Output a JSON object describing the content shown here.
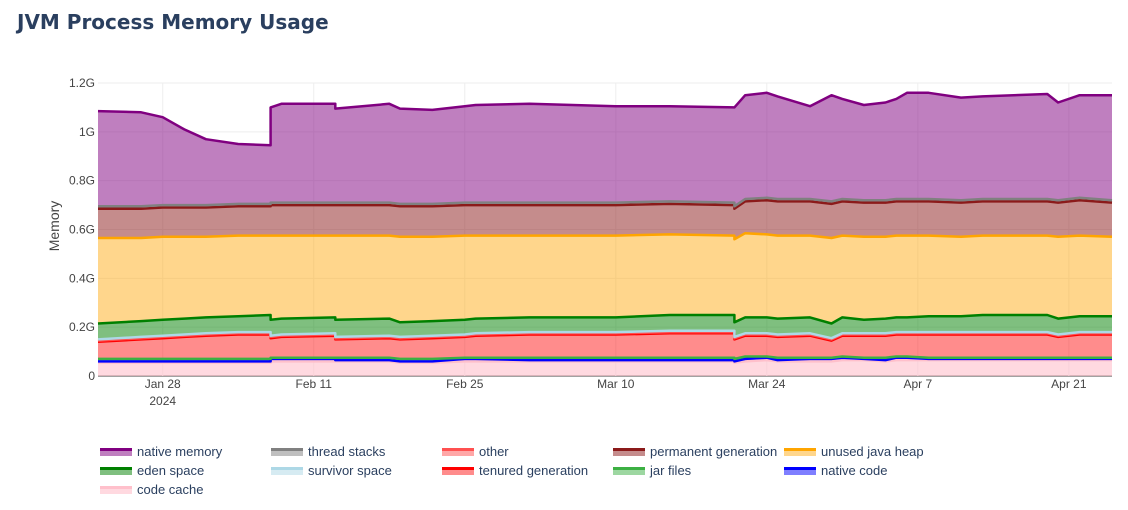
{
  "page": {
    "title": "JVM Process Memory Usage"
  },
  "chart_data": {
    "type": "area",
    "stacked": true,
    "title": "JVM Process Memory Usage",
    "xlabel": "",
    "ylabel": "Memory",
    "ylim": [
      0,
      1.2
    ],
    "yunit": "G",
    "ytick_labels": [
      "0",
      "0.2G",
      "0.4G",
      "0.6G",
      "0.8G",
      "1G",
      "1.2G"
    ],
    "ytick_values": [
      0,
      0.2,
      0.4,
      0.6,
      0.8,
      1.0,
      1.2
    ],
    "xlim": [
      "2024-01-22",
      "2024-04-25"
    ],
    "xtick_labels": [
      "Jan 28",
      "Feb 11",
      "Feb 25",
      "Mar 10",
      "Mar 24",
      "Apr 7",
      "Apr 21"
    ],
    "xtick_dates": [
      "2024-01-28",
      "2024-02-11",
      "2024-02-25",
      "2024-03-10",
      "2024-03-24",
      "2024-04-07",
      "2024-04-21"
    ],
    "xtick_year_label": "2024",
    "grid": true,
    "legend_position": "bottom",
    "x": [
      "2024-01-22",
      "2024-01-26",
      "2024-01-28",
      "2024-01-30",
      "2024-02-01",
      "2024-02-04",
      "2024-02-07",
      "2024-02-07",
      "2024-02-08",
      "2024-02-13",
      "2024-02-13",
      "2024-02-18",
      "2024-02-19",
      "2024-02-22",
      "2024-02-25",
      "2024-02-26",
      "2024-03-02",
      "2024-03-10",
      "2024-03-15",
      "2024-03-21",
      "2024-03-21",
      "2024-03-22",
      "2024-03-24",
      "2024-03-25",
      "2024-03-28",
      "2024-03-30",
      "2024-03-31",
      "2024-04-02",
      "2024-04-04",
      "2024-04-05",
      "2024-04-06",
      "2024-04-08",
      "2024-04-11",
      "2024-04-13",
      "2024-04-19",
      "2024-04-20",
      "2024-04-22",
      "2024-04-25"
    ],
    "series": [
      {
        "name": "code cache",
        "values": [
          0.055,
          0.055,
          0.055,
          0.055,
          0.055,
          0.055,
          0.055,
          0.06,
          0.06,
          0.06,
          0.06,
          0.06,
          0.055,
          0.055,
          0.06,
          0.06,
          0.06,
          0.06,
          0.06,
          0.06,
          0.055,
          0.06,
          0.065,
          0.06,
          0.06,
          0.06,
          0.065,
          0.065,
          0.06,
          0.065,
          0.065,
          0.065,
          0.065,
          0.065,
          0.065,
          0.065,
          0.065,
          0.065
        ]
      },
      {
        "name": "native code",
        "values": [
          0.005,
          0.005,
          0.005,
          0.005,
          0.005,
          0.005,
          0.005,
          0.01,
          0.01,
          0.01,
          0.005,
          0.005,
          0.005,
          0.005,
          0.01,
          0.01,
          0.005,
          0.005,
          0.005,
          0.005,
          0.005,
          0.01,
          0.01,
          0.005,
          0.01,
          0.01,
          0.01,
          0.005,
          0.005,
          0.01,
          0.01,
          0.005,
          0.005,
          0.005,
          0.005,
          0.005,
          0.005,
          0.005
        ]
      },
      {
        "name": "jar files",
        "values": [
          0.01,
          0.01,
          0.01,
          0.01,
          0.01,
          0.01,
          0.01,
          0.005,
          0.005,
          0.005,
          0.01,
          0.01,
          0.01,
          0.01,
          0.005,
          0.005,
          0.01,
          0.01,
          0.01,
          0.01,
          0.01,
          0.01,
          0.005,
          0.01,
          0.005,
          0.005,
          0.005,
          0.005,
          0.01,
          0.005,
          0.005,
          0.005,
          0.005,
          0.005,
          0.005,
          0.005,
          0.005,
          0.005
        ]
      },
      {
        "name": "tenured generation",
        "values": [
          0.07,
          0.08,
          0.085,
          0.09,
          0.095,
          0.1,
          0.1,
          0.08,
          0.085,
          0.09,
          0.075,
          0.08,
          0.08,
          0.085,
          0.085,
          0.09,
          0.095,
          0.095,
          0.1,
          0.1,
          0.08,
          0.085,
          0.085,
          0.085,
          0.09,
          0.07,
          0.085,
          0.09,
          0.09,
          0.09,
          0.09,
          0.095,
          0.095,
          0.095,
          0.095,
          0.085,
          0.095,
          0.095
        ]
      },
      {
        "name": "other",
        "values": [
          0.005,
          0.005,
          0.005,
          0.005,
          0.005,
          0.005,
          0.005,
          0.005,
          0.005,
          0.005,
          0.005,
          0.005,
          0.005,
          0.005,
          0.005,
          0.005,
          0.005,
          0.005,
          0.005,
          0.005,
          0.005,
          0.005,
          0.005,
          0.005,
          0.005,
          0.005,
          0.005,
          0.005,
          0.005,
          0.005,
          0.005,
          0.005,
          0.005,
          0.005,
          0.005,
          0.005,
          0.005,
          0.005
        ]
      },
      {
        "name": "survivor space",
        "values": [
          0.005,
          0.005,
          0.005,
          0.005,
          0.005,
          0.005,
          0.005,
          0.005,
          0.005,
          0.005,
          0.005,
          0.005,
          0.005,
          0.005,
          0.005,
          0.005,
          0.005,
          0.005,
          0.005,
          0.005,
          0.005,
          0.005,
          0.005,
          0.005,
          0.005,
          0.005,
          0.005,
          0.005,
          0.005,
          0.005,
          0.005,
          0.005,
          0.005,
          0.005,
          0.005,
          0.005,
          0.005,
          0.005
        ]
      },
      {
        "name": "eden space",
        "values": [
          0.065,
          0.065,
          0.065,
          0.065,
          0.065,
          0.065,
          0.07,
          0.065,
          0.065,
          0.065,
          0.07,
          0.07,
          0.06,
          0.06,
          0.06,
          0.06,
          0.06,
          0.06,
          0.065,
          0.065,
          0.06,
          0.065,
          0.065,
          0.065,
          0.065,
          0.06,
          0.065,
          0.055,
          0.06,
          0.06,
          0.06,
          0.065,
          0.065,
          0.07,
          0.07,
          0.065,
          0.065,
          0.065
        ]
      },
      {
        "name": "unused java heap",
        "values": [
          0.35,
          0.34,
          0.34,
          0.335,
          0.33,
          0.33,
          0.325,
          0.345,
          0.34,
          0.335,
          0.345,
          0.34,
          0.35,
          0.345,
          0.345,
          0.34,
          0.335,
          0.335,
          0.33,
          0.325,
          0.34,
          0.345,
          0.34,
          0.34,
          0.335,
          0.35,
          0.335,
          0.34,
          0.335,
          0.335,
          0.335,
          0.33,
          0.325,
          0.325,
          0.325,
          0.335,
          0.33,
          0.325
        ]
      },
      {
        "name": "permanent generation",
        "values": [
          0.12,
          0.12,
          0.12,
          0.12,
          0.12,
          0.12,
          0.12,
          0.125,
          0.125,
          0.125,
          0.125,
          0.125,
          0.125,
          0.125,
          0.125,
          0.125,
          0.125,
          0.125,
          0.125,
          0.125,
          0.125,
          0.13,
          0.14,
          0.14,
          0.14,
          0.14,
          0.14,
          0.14,
          0.14,
          0.14,
          0.14,
          0.14,
          0.14,
          0.14,
          0.14,
          0.14,
          0.145,
          0.14
        ]
      },
      {
        "name": "thread stacks",
        "values": [
          0.01,
          0.01,
          0.01,
          0.01,
          0.01,
          0.01,
          0.01,
          0.01,
          0.01,
          0.01,
          0.01,
          0.01,
          0.01,
          0.01,
          0.01,
          0.01,
          0.01,
          0.01,
          0.01,
          0.01,
          0.01,
          0.01,
          0.01,
          0.01,
          0.01,
          0.01,
          0.01,
          0.01,
          0.01,
          0.01,
          0.01,
          0.01,
          0.01,
          0.01,
          0.01,
          0.01,
          0.01,
          0.01
        ]
      },
      {
        "name": "native memory",
        "values": [
          0.39,
          0.385,
          0.36,
          0.31,
          0.27,
          0.245,
          0.24,
          0.39,
          0.405,
          0.405,
          0.385,
          0.405,
          0.39,
          0.385,
          0.395,
          0.4,
          0.405,
          0.395,
          0.39,
          0.39,
          0.405,
          0.425,
          0.43,
          0.42,
          0.38,
          0.435,
          0.41,
          0.39,
          0.4,
          0.41,
          0.435,
          0.435,
          0.42,
          0.42,
          0.43,
          0.4,
          0.42,
          0.43
        ]
      }
    ],
    "colors": {
      "native memory": {
        "line": "#800080",
        "fill": "rgba(128,0,128,0.5)"
      },
      "thread stacks": {
        "line": "#808080",
        "fill": "rgba(128,128,128,0.5)"
      },
      "other": {
        "line": "#ff5050",
        "fill": "rgba(255,80,80,0.5)"
      },
      "permanent generation": {
        "line": "#8b1a1a",
        "fill": "rgba(139,26,26,0.5)"
      },
      "unused java heap": {
        "line": "#ffa500",
        "fill": "rgba(255,165,0,0.45)"
      },
      "eden space": {
        "line": "#008000",
        "fill": "rgba(0,128,0,0.5)"
      },
      "survivor space": {
        "line": "#add8e6",
        "fill": "rgba(173,216,230,0.5)"
      },
      "tenured generation": {
        "line": "#ff0000",
        "fill": "rgba(255,0,0,0.45)"
      },
      "jar files": {
        "line": "#3cb043",
        "fill": "rgba(60,176,67,0.5)"
      },
      "native code": {
        "line": "#0000ff",
        "fill": "rgba(0,0,255,0.5)"
      },
      "code cache": {
        "line": "#ffc0cb",
        "fill": "rgba(255,192,203,0.6)"
      }
    },
    "legend_order": [
      "native memory",
      "thread stacks",
      "other",
      "permanent generation",
      "unused java heap",
      "eden space",
      "survivor space",
      "tenured generation",
      "jar files",
      "native code",
      "code cache"
    ]
  }
}
